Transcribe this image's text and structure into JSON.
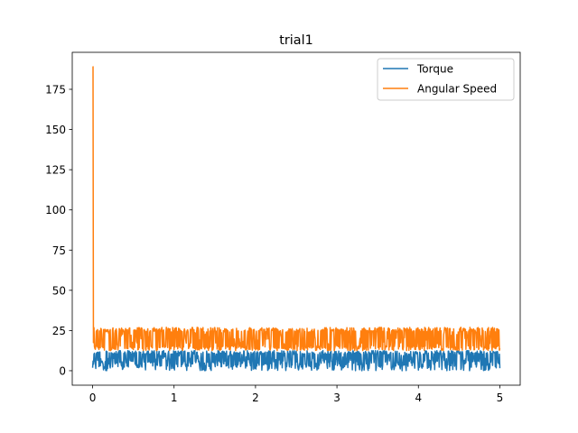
{
  "chart_data": {
    "type": "line",
    "title": "trial1",
    "xlabel": "",
    "ylabel": "",
    "xlim": [
      -0.25,
      5.25
    ],
    "ylim": [
      -9,
      198
    ],
    "x_ticks": [
      0,
      1,
      2,
      3,
      4,
      5
    ],
    "x_tick_labels": [
      "0",
      "1",
      "2",
      "3",
      "4",
      "5"
    ],
    "y_ticks": [
      0,
      25,
      50,
      75,
      100,
      125,
      150,
      175
    ],
    "y_tick_labels": [
      "0",
      "25",
      "50",
      "75",
      "100",
      "125",
      "150",
      "175"
    ],
    "grid": false,
    "legend_position": "top-right",
    "x_range": [
      0,
      5
    ],
    "series": [
      {
        "name": "Torque",
        "color": "#1f77b4",
        "peak": 12.5,
        "min": 0,
        "typical_range": [
          0,
          12.5
        ],
        "pattern": "dense oscillation between ~0 and ~12.5 across the full x range"
      },
      {
        "name": "Angular Speed",
        "color": "#ff7f0e",
        "initial_spike": {
          "x": 0,
          "y": 189
        },
        "min": 12.5,
        "max": 27,
        "typical_range": [
          12.5,
          27
        ],
        "pattern": "initial spike to ~189 at x=0, then dense oscillation between ~12.5 and ~27"
      }
    ]
  }
}
